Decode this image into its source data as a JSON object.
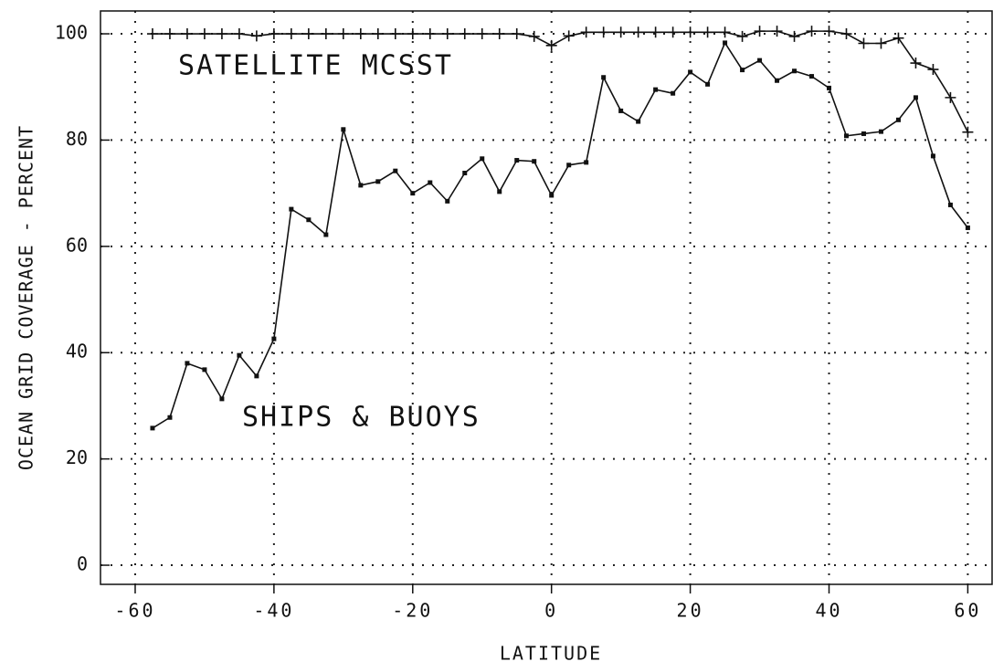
{
  "chart_data": {
    "type": "line",
    "xlabel": "LATITUDE",
    "ylabel": "OCEAN GRID COVERAGE - PERCENT",
    "annotations": [
      "SATELLITE MCSST",
      "SHIPS & BUOYS"
    ],
    "x": [
      -57.5,
      -55,
      -52.5,
      -50,
      -47.5,
      -45,
      -42.5,
      -40,
      -37.5,
      -35,
      -32.5,
      -30,
      -27.5,
      -25,
      -22.5,
      -20,
      -17.5,
      -15,
      -12.5,
      -10,
      -7.5,
      -5,
      -2.5,
      0,
      2.5,
      5,
      7.5,
      10,
      12.5,
      15,
      17.5,
      20,
      22.5,
      25,
      27.5,
      30,
      32.5,
      35,
      37.5,
      40,
      42.5,
      45,
      47.5,
      50,
      52.5,
      55,
      57.5,
      60
    ],
    "series": [
      {
        "name": "SATELLITE MCSST",
        "color": "#111111",
        "marker": "plus",
        "values": [
          100,
          100,
          100,
          100,
          100,
          100,
          99.6,
          100,
          100,
          100,
          100,
          100,
          100,
          100,
          100,
          100,
          100,
          100,
          100,
          100,
          100,
          100,
          99.5,
          97.8,
          99.6,
          100.3,
          100.3,
          100.3,
          100.3,
          100.3,
          100.3,
          100.3,
          100.3,
          100.3,
          99.5,
          100.5,
          100.5,
          99.5,
          100.5,
          100.5,
          100,
          98.2,
          98.2,
          99.2,
          94.5,
          93.3,
          88,
          81.5
        ]
      },
      {
        "name": "SHIPS & BUOYS",
        "color": "#111111",
        "marker": "square",
        "values": [
          25.8,
          27.8,
          38,
          36.8,
          31.3,
          39.5,
          35.6,
          42.6,
          67,
          65,
          62.2,
          82,
          71.5,
          72.2,
          74.2,
          70,
          72,
          68.5,
          73.8,
          76.5,
          70.3,
          76.2,
          76,
          69.6,
          75.3,
          75.8,
          91.8,
          85.5,
          83.5,
          89.5,
          88.8,
          92.8,
          90.5,
          98.3,
          93.2,
          95,
          91.2,
          93,
          92,
          89.8,
          80.8,
          81.2,
          81.6,
          83.8,
          88,
          77,
          67.8,
          63.5
        ]
      }
    ],
    "xlim": [
      -65,
      63.5
    ],
    "ylim": [
      -3.6,
      104.3
    ],
    "xticks": [
      -60,
      -40,
      -20,
      0,
      20,
      40,
      60
    ],
    "yticks": [
      0,
      20,
      40,
      60,
      80,
      100
    ],
    "grid": true
  }
}
